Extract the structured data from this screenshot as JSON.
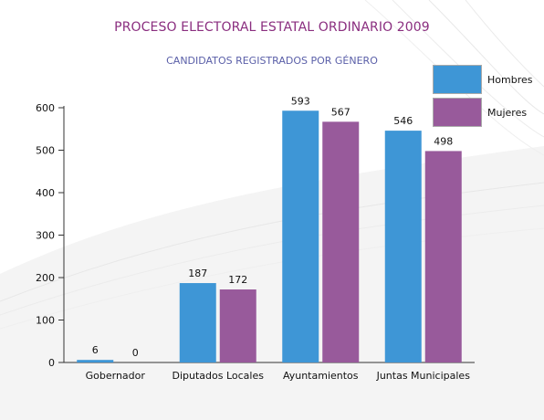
{
  "chart_data": {
    "type": "bar",
    "title": "PROCESO ELECTORAL ESTATAL ORDINARIO 2009",
    "subtitle": "CANDIDATOS REGISTRADOS POR GÉNERO",
    "categories": [
      "Gobernador",
      "Diputados Locales",
      "Ayuntamientos",
      "Juntas Municipales"
    ],
    "series": [
      {
        "name": "Hombres",
        "values": [
          6,
          187,
          593,
          546
        ],
        "color": "#3e96d6"
      },
      {
        "name": "Mujeres",
        "values": [
          0,
          172,
          567,
          498
        ],
        "color": "#985a9b"
      }
    ],
    "y_ticks": [
      "0",
      "100",
      "200",
      "300",
      "400",
      "500",
      "600"
    ],
    "ylim": [
      0,
      600
    ],
    "grid": false,
    "legend_position": "top-right",
    "data_labels": true
  }
}
